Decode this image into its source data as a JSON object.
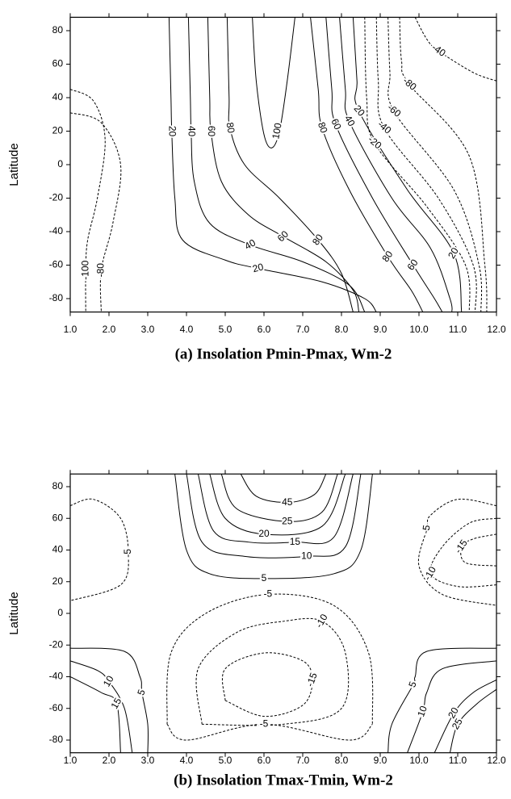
{
  "chart_data": [
    {
      "type": "contour",
      "title": "(a) Insolation Pmin-Pmax, Wm-2",
      "y_label": "Latitude",
      "color": "#000000",
      "xlim": [
        1,
        12
      ],
      "xticks": [
        {
          "value": 1,
          "label": "1.0"
        },
        {
          "value": 2,
          "label": "2.0"
        },
        {
          "value": 3,
          "label": "3.0"
        },
        {
          "value": 4,
          "label": "4.0"
        },
        {
          "value": 5,
          "label": "5.0"
        },
        {
          "value": 6,
          "label": "6.0"
        },
        {
          "value": 7,
          "label": "7.0"
        },
        {
          "value": 8,
          "label": "8.0"
        },
        {
          "value": 9,
          "label": "9.0"
        },
        {
          "value": 10,
          "label": "10.0"
        },
        {
          "value": 11,
          "label": "11.0"
        },
        {
          "value": 12,
          "label": "12.0"
        }
      ],
      "ylim": [
        -88,
        88
      ],
      "yticks": [
        -80,
        -60,
        -40,
        -20,
        0,
        20,
        40,
        60,
        80
      ],
      "contour_labels": [
        20,
        40,
        60,
        80,
        100,
        80,
        60,
        40,
        20,
        -20,
        -40,
        -60,
        -80,
        -40,
        40,
        20,
        60,
        80,
        80,
        60,
        20,
        -100,
        -80
      ]
    },
    {
      "type": "contour",
      "title": "(b) Insolation Tmax-Tmin, Wm-2",
      "y_label": "Latitude",
      "color": "#000000",
      "xlim": [
        1,
        12
      ],
      "xticks": [
        {
          "value": 1,
          "label": "1.0"
        },
        {
          "value": 2,
          "label": "2.0"
        },
        {
          "value": 3,
          "label": "3.0"
        },
        {
          "value": 4,
          "label": "4.0"
        },
        {
          "value": 5,
          "label": "5.0"
        },
        {
          "value": 6,
          "label": "6.0"
        },
        {
          "value": 7,
          "label": "7.0"
        },
        {
          "value": 8,
          "label": "8.0"
        },
        {
          "value": 9,
          "label": "9.0"
        },
        {
          "value": 10,
          "label": "10.0"
        },
        {
          "value": 11,
          "label": "11.0"
        },
        {
          "value": 12,
          "label": "12.0"
        }
      ],
      "ylim": [
        -88,
        88
      ],
      "yticks": [
        -80,
        -60,
        -40,
        -20,
        0,
        20,
        40,
        60,
        80
      ],
      "contour_labels": [
        45,
        25,
        20,
        15,
        10,
        5,
        -5,
        -5,
        -10,
        -15,
        -5,
        -5,
        -10,
        -15,
        10,
        15,
        5,
        5,
        10,
        20,
        25
      ]
    }
  ]
}
